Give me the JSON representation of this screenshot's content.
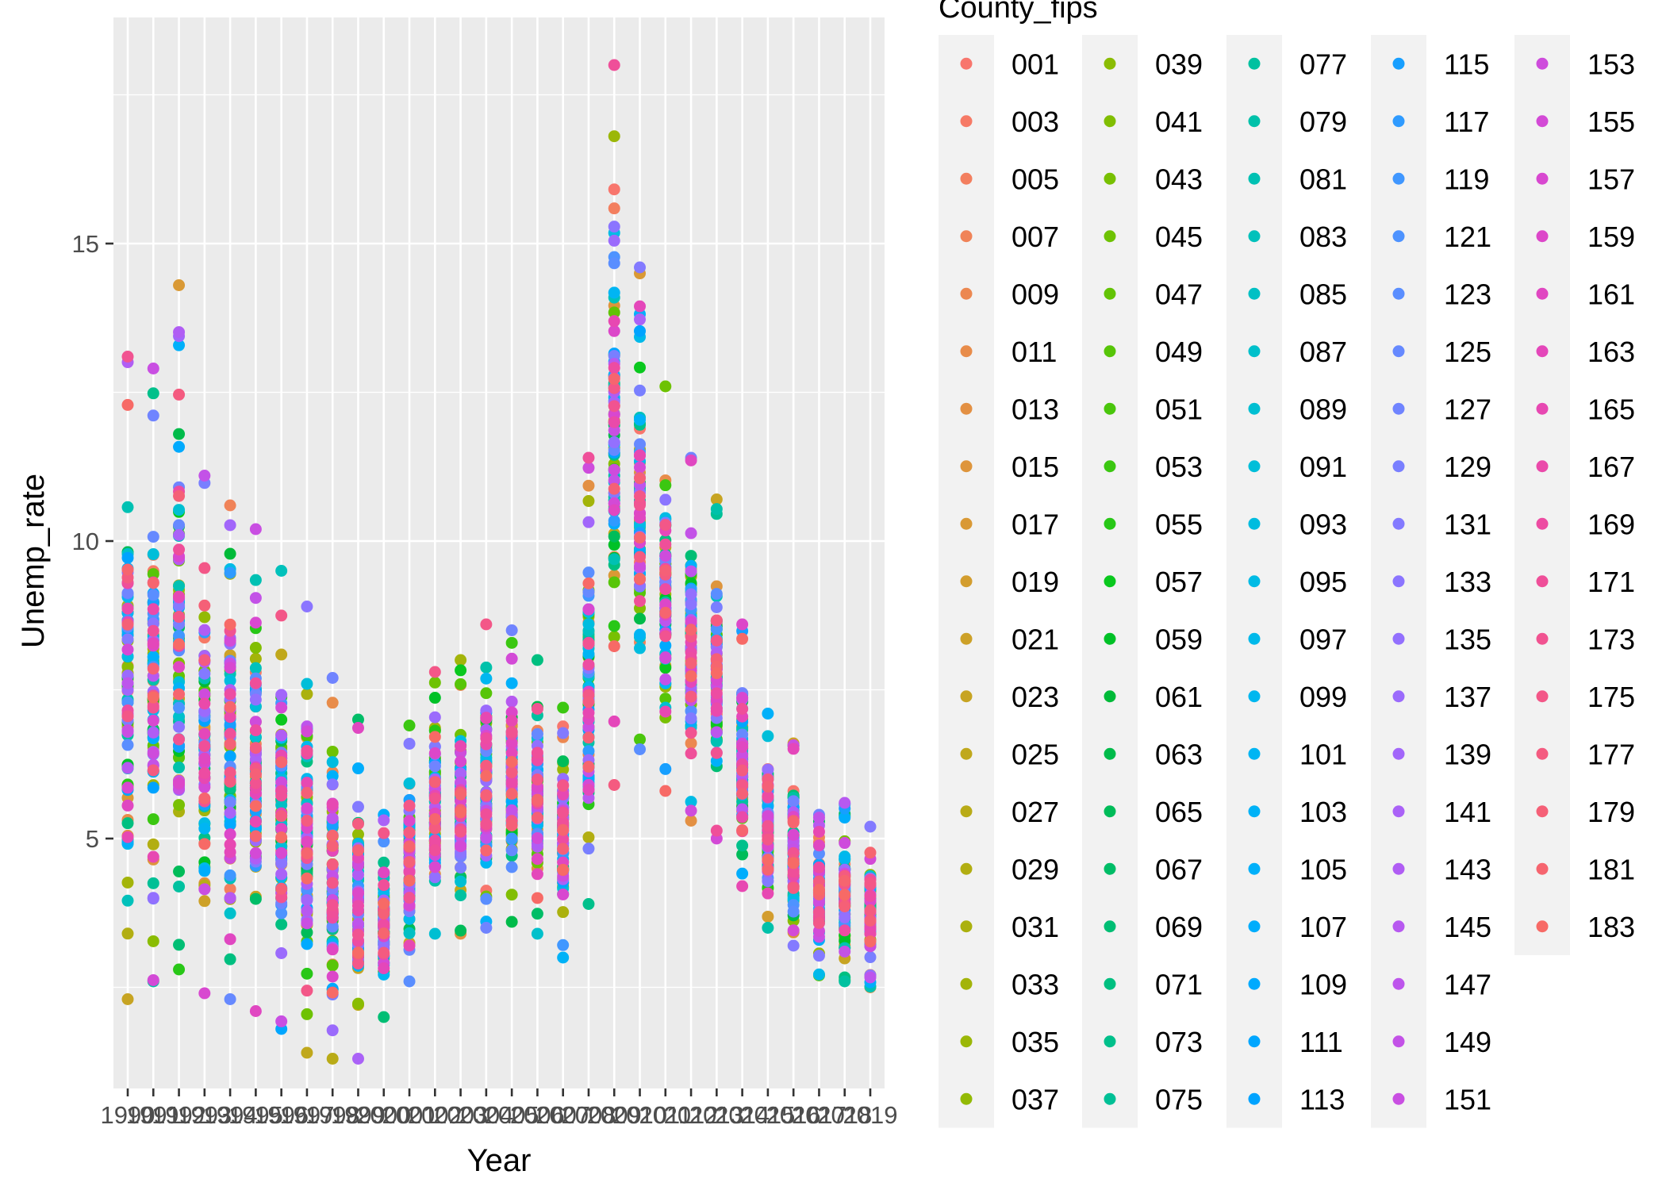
{
  "chart_data": {
    "type": "scatter",
    "title": "",
    "xlabel": "Year",
    "ylabel": "Unemp_rate",
    "xlim": [
      1990,
      2019
    ],
    "ylim": [
      0.8,
      18.8
    ],
    "y_ticks": [
      5,
      10,
      15
    ],
    "grid": true,
    "legend_title": "County_fips",
    "legend_position": "right",
    "x": [
      1990,
      1991,
      1992,
      1993,
      1994,
      1995,
      1996,
      1997,
      1998,
      1999,
      2000,
      2001,
      2002,
      2003,
      2004,
      2005,
      2006,
      2007,
      2008,
      2009,
      2010,
      2011,
      2012,
      2013,
      2014,
      2015,
      2016,
      2017,
      2018,
      2019
    ],
    "x_tick_labels": [
      "1990",
      "1991",
      "1992",
      "1993",
      "1994",
      "1995",
      "1996",
      "1997",
      "1998",
      "1999",
      "2000",
      "2001",
      "2002",
      "2003",
      "2004",
      "2005",
      "2006",
      "2007",
      "2008",
      "2009",
      "2010",
      "2011",
      "2012",
      "2013",
      "2014",
      "2015",
      "2016",
      "2017",
      "2018",
      "2019"
    ],
    "year_summary": [
      {
        "year": 1990,
        "min": 2.3,
        "max": 13.1
      },
      {
        "year": 1991,
        "min": 2.6,
        "max": 12.9
      },
      {
        "year": 1992,
        "min": 2.8,
        "max": 14.3
      },
      {
        "year": 1993,
        "min": 2.4,
        "max": 11.1
      },
      {
        "year": 1994,
        "min": 2.3,
        "max": 10.6
      },
      {
        "year": 1995,
        "min": 2.1,
        "max": 10.2
      },
      {
        "year": 1996,
        "min": 1.8,
        "max": 9.5
      },
      {
        "year": 1997,
        "min": 1.4,
        "max": 8.9
      },
      {
        "year": 1998,
        "min": 1.3,
        "max": 7.7
      },
      {
        "year": 1999,
        "min": 1.3,
        "max": 7.0
      },
      {
        "year": 2000,
        "min": 2.0,
        "max": 5.4
      },
      {
        "year": 2001,
        "min": 2.6,
        "max": 6.9
      },
      {
        "year": 2002,
        "min": 3.4,
        "max": 7.8
      },
      {
        "year": 2003,
        "min": 3.4,
        "max": 8.0
      },
      {
        "year": 2004,
        "min": 3.5,
        "max": 8.6
      },
      {
        "year": 2005,
        "min": 3.6,
        "max": 8.5
      },
      {
        "year": 2006,
        "min": 3.4,
        "max": 8.0
      },
      {
        "year": 2007,
        "min": 3.0,
        "max": 7.2
      },
      {
        "year": 2008,
        "min": 3.9,
        "max": 11.4
      },
      {
        "year": 2009,
        "min": 5.9,
        "max": 18.0
      },
      {
        "year": 2010,
        "min": 6.5,
        "max": 14.6
      },
      {
        "year": 2011,
        "min": 5.8,
        "max": 12.6
      },
      {
        "year": 2012,
        "min": 5.3,
        "max": 11.4
      },
      {
        "year": 2013,
        "min": 5.0,
        "max": 10.7
      },
      {
        "year": 2014,
        "min": 4.2,
        "max": 8.6
      },
      {
        "year": 2015,
        "min": 3.5,
        "max": 7.1
      },
      {
        "year": 2016,
        "min": 3.2,
        "max": 6.6
      },
      {
        "year": 2017,
        "min": 2.7,
        "max": 5.4
      },
      {
        "year": 2018,
        "min": 2.6,
        "max": 5.6
      },
      {
        "year": 2019,
        "min": 2.5,
        "max": 5.2
      }
    ],
    "series": [
      {
        "name": "001",
        "color": "#F8766D"
      },
      {
        "name": "003",
        "color": "#F67A66"
      },
      {
        "name": "005",
        "color": "#F37F5F"
      },
      {
        "name": "007",
        "color": "#F08358"
      },
      {
        "name": "009",
        "color": "#EC8851"
      },
      {
        "name": "011",
        "color": "#E88C4A"
      },
      {
        "name": "013",
        "color": "#E39043"
      },
      {
        "name": "015",
        "color": "#DE953C"
      },
      {
        "name": "017",
        "color": "#D99935"
      },
      {
        "name": "019",
        "color": "#D39D2E"
      },
      {
        "name": "021",
        "color": "#CDA128"
      },
      {
        "name": "023",
        "color": "#C7A422"
      },
      {
        "name": "025",
        "color": "#C0A81C"
      },
      {
        "name": "027",
        "color": "#B9AB17"
      },
      {
        "name": "029",
        "color": "#B2AE12"
      },
      {
        "name": "031",
        "color": "#ABB10E"
      },
      {
        "name": "033",
        "color": "#A3B40A"
      },
      {
        "name": "035",
        "color": "#9BB707"
      },
      {
        "name": "037",
        "color": "#93BA05"
      },
      {
        "name": "039",
        "color": "#8ABC03"
      },
      {
        "name": "041",
        "color": "#81BE02"
      },
      {
        "name": "043",
        "color": "#78C002"
      },
      {
        "name": "045",
        "color": "#6EC203"
      },
      {
        "name": "047",
        "color": "#63C305"
      },
      {
        "name": "049",
        "color": "#57C508"
      },
      {
        "name": "051",
        "color": "#4AC60C"
      },
      {
        "name": "053",
        "color": "#3BC711"
      },
      {
        "name": "055",
        "color": "#28C717"
      },
      {
        "name": "057",
        "color": "#0AC81E"
      },
      {
        "name": "059",
        "color": "#00C127"
      },
      {
        "name": "061",
        "color": "#00BA38"
      },
      {
        "name": "063",
        "color": "#00BB4A"
      },
      {
        "name": "065",
        "color": "#00BC59"
      },
      {
        "name": "067",
        "color": "#00BD67"
      },
      {
        "name": "069",
        "color": "#00BE74"
      },
      {
        "name": "071",
        "color": "#00BF80"
      },
      {
        "name": "073",
        "color": "#00C08B"
      },
      {
        "name": "075",
        "color": "#00C096"
      },
      {
        "name": "077",
        "color": "#00C1A0"
      },
      {
        "name": "079",
        "color": "#00C1AA"
      },
      {
        "name": "081",
        "color": "#00C1B3"
      },
      {
        "name": "083",
        "color": "#00C1BB"
      },
      {
        "name": "085",
        "color": "#00C0C4"
      },
      {
        "name": "087",
        "color": "#00C0CB"
      },
      {
        "name": "089",
        "color": "#00BFD2"
      },
      {
        "name": "091",
        "color": "#00BED9"
      },
      {
        "name": "093",
        "color": "#00BCDF"
      },
      {
        "name": "095",
        "color": "#00BBE5"
      },
      {
        "name": "097",
        "color": "#00B9EA"
      },
      {
        "name": "099",
        "color": "#00B7EF"
      },
      {
        "name": "101",
        "color": "#00B5F3"
      },
      {
        "name": "103",
        "color": "#00B2F7"
      },
      {
        "name": "105",
        "color": "#00B0FA"
      },
      {
        "name": "107",
        "color": "#00ADFC"
      },
      {
        "name": "109",
        "color": "#00AAFE"
      },
      {
        "name": "111",
        "color": "#00A6FF"
      },
      {
        "name": "113",
        "color": "#00A3FF"
      },
      {
        "name": "115",
        "color": "#179FFF"
      },
      {
        "name": "117",
        "color": "#2F9BFF"
      },
      {
        "name": "119",
        "color": "#4097FF"
      },
      {
        "name": "121",
        "color": "#4E93FF"
      },
      {
        "name": "123",
        "color": "#5A8EFF"
      },
      {
        "name": "125",
        "color": "#6689FF"
      },
      {
        "name": "127",
        "color": "#7084FF"
      },
      {
        "name": "129",
        "color": "#797FFF"
      },
      {
        "name": "131",
        "color": "#837AFF"
      },
      {
        "name": "133",
        "color": "#8B75FF"
      },
      {
        "name": "135",
        "color": "#9370FE"
      },
      {
        "name": "137",
        "color": "#9B6BFC"
      },
      {
        "name": "139",
        "color": "#A266FA"
      },
      {
        "name": "141",
        "color": "#AA62F7"
      },
      {
        "name": "143",
        "color": "#B05DF4"
      },
      {
        "name": "145",
        "color": "#B759F0"
      },
      {
        "name": "147",
        "color": "#BD55EC"
      },
      {
        "name": "149",
        "color": "#C352E7"
      },
      {
        "name": "151",
        "color": "#C94FE2"
      },
      {
        "name": "153",
        "color": "#CE4CDC"
      },
      {
        "name": "155",
        "color": "#D34AD6"
      },
      {
        "name": "157",
        "color": "#D848D0"
      },
      {
        "name": "159",
        "color": "#DC47C9"
      },
      {
        "name": "161",
        "color": "#E047C1"
      },
      {
        "name": "163",
        "color": "#E447BA"
      },
      {
        "name": "165",
        "color": "#E748B2"
      },
      {
        "name": "167",
        "color": "#EA4AAA"
      },
      {
        "name": "169",
        "color": "#ED4CA2"
      },
      {
        "name": "171",
        "color": "#EF4F99"
      },
      {
        "name": "173",
        "color": "#F15391"
      },
      {
        "name": "175",
        "color": "#F35788"
      },
      {
        "name": "177",
        "color": "#F45B80"
      },
      {
        "name": "179",
        "color": "#F56077"
      },
      {
        "name": "181",
        "color": "#F6656F"
      },
      {
        "name": "183",
        "color": "#F76A66"
      }
    ]
  }
}
